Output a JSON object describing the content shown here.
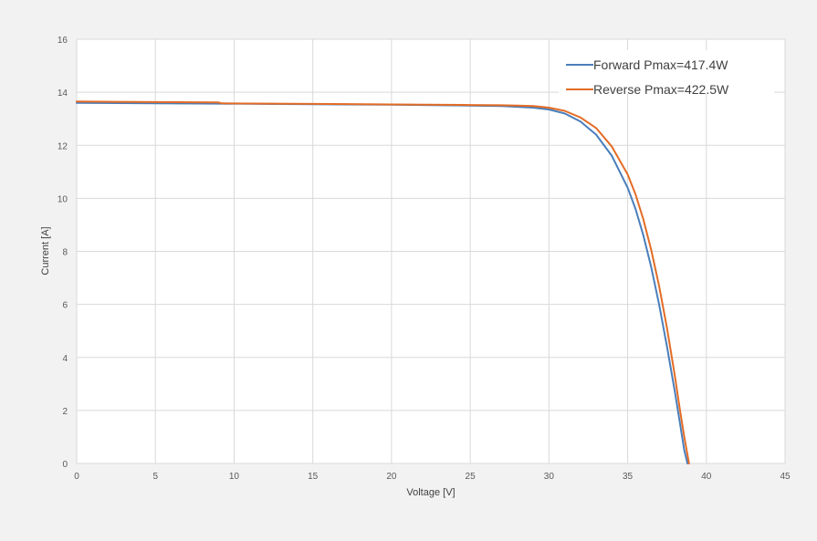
{
  "chart_data": {
    "type": "line",
    "title": "",
    "xlabel": "Voltage [V]",
    "ylabel": "Current [A]",
    "xlim": [
      0,
      45
    ],
    "ylim": [
      0,
      16
    ],
    "xticks": [
      0,
      5,
      10,
      15,
      20,
      25,
      30,
      35,
      40,
      45
    ],
    "yticks": [
      0,
      2,
      4,
      6,
      8,
      10,
      12,
      14,
      16
    ],
    "xtick_labels": [
      "0",
      "5",
      "10",
      "15",
      "20",
      "25",
      "30",
      "35",
      "40",
      "45"
    ],
    "ytick_labels": [
      "0",
      "2",
      "4",
      "6",
      "8",
      "10",
      "12",
      "14",
      "16"
    ],
    "grid": true,
    "legend_position": "top-right",
    "series": [
      {
        "name": "Forward Pmax=417.4W",
        "color": "#4a7ebb",
        "x": [
          0,
          5,
          9,
          15,
          20,
          25,
          27,
          28,
          29,
          30,
          31,
          32,
          33,
          34,
          35,
          35.5,
          36,
          36.5,
          37,
          37.5,
          38,
          38.3,
          38.6,
          38.8
        ],
        "y": [
          13.6,
          13.58,
          13.57,
          13.55,
          13.53,
          13.5,
          13.48,
          13.45,
          13.42,
          13.35,
          13.2,
          12.9,
          12.4,
          11.6,
          10.4,
          9.6,
          8.6,
          7.4,
          6.0,
          4.4,
          2.7,
          1.6,
          0.5,
          0
        ]
      },
      {
        "name": "Reverse Pmax=422.5W",
        "color": "#e36c25",
        "x": [
          0,
          5,
          9,
          9.2,
          15,
          20,
          25,
          27,
          28,
          29,
          30,
          31,
          32,
          33,
          34,
          35,
          35.5,
          36,
          36.5,
          37,
          37.5,
          38,
          38.3,
          38.6,
          38.9
        ],
        "y": [
          13.65,
          13.63,
          13.62,
          13.58,
          13.56,
          13.54,
          13.52,
          13.51,
          13.5,
          13.48,
          13.42,
          13.3,
          13.05,
          12.65,
          11.95,
          10.9,
          10.15,
          9.2,
          8.05,
          6.7,
          5.1,
          3.3,
          2.1,
          1.0,
          0
        ]
      }
    ]
  }
}
